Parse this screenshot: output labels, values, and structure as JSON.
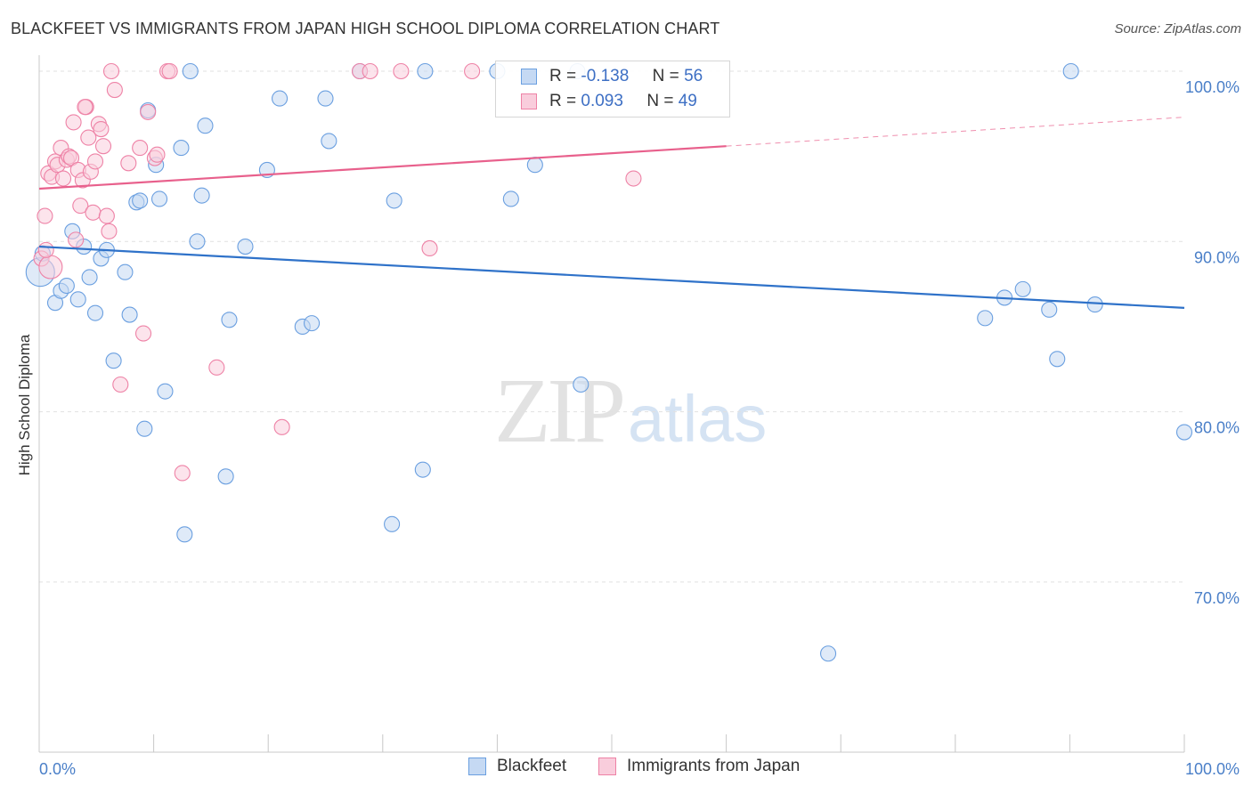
{
  "title": "BLACKFEET VS IMMIGRANTS FROM JAPAN HIGH SCHOOL DIPLOMA CORRELATION CHART",
  "source": "Source: ZipAtlas.com",
  "watermark": {
    "zip": "ZIP",
    "atlas": "atlas"
  },
  "colors": {
    "blue": "#6a9fe0",
    "blue_fill": "#c5d9f3",
    "blue_line": "#2f72c9",
    "pink": "#ee82a6",
    "pink_fill": "#f9cddc",
    "pink_line": "#e8608c",
    "grid": "#e1e1e1",
    "tick_text": "#4a7fc8"
  },
  "legend": {
    "rows": [
      {
        "r_label": "R =",
        "r_value": "-0.138",
        "n_label": "N =",
        "n_value": "56"
      },
      {
        "r_label": "R =",
        "r_value": "0.093",
        "n_label": "N =",
        "n_value": "49"
      }
    ]
  },
  "bottom_legend": [
    "Blackfeet",
    "Immigrants from Japan"
  ],
  "chart_data": {
    "type": "scatter",
    "title": "BLACKFEET VS IMMIGRANTS FROM JAPAN HIGH SCHOOL DIPLOMA CORRELATION CHART",
    "xlabel": "",
    "ylabel": "High School Diploma",
    "xlim": [
      0,
      100
    ],
    "ylim": [
      60,
      101.5
    ],
    "x_tick_labels": [
      "0.0%",
      "100.0%"
    ],
    "y_ticks": [
      70,
      80,
      90,
      100
    ],
    "y_tick_labels": [
      "70.0%",
      "80.0%",
      "90.0%",
      "100.0%"
    ],
    "grid": true,
    "legend_position": "top-center",
    "series": [
      {
        "name": "Blackfeet",
        "r": -0.138,
        "n": 56,
        "trend": {
          "x": [
            0,
            100
          ],
          "y": [
            89.7,
            86.1
          ],
          "dashed_from": null
        },
        "points": [
          [
            0.1,
            88.2
          ],
          [
            0.3,
            89.3
          ],
          [
            1.4,
            86.4
          ],
          [
            1.9,
            87.1
          ],
          [
            2.4,
            87.4
          ],
          [
            2.9,
            90.6
          ],
          [
            3.4,
            86.6
          ],
          [
            3.9,
            89.7
          ],
          [
            4.4,
            87.9
          ],
          [
            4.9,
            85.8
          ],
          [
            5.4,
            89.0
          ],
          [
            5.9,
            89.5
          ],
          [
            6.5,
            83.0
          ],
          [
            7.5,
            88.2
          ],
          [
            7.9,
            85.7
          ],
          [
            8.5,
            92.3
          ],
          [
            8.8,
            92.4
          ],
          [
            9.2,
            79.0
          ],
          [
            9.5,
            97.7
          ],
          [
            10.2,
            94.5
          ],
          [
            10.5,
            92.5
          ],
          [
            11.0,
            81.2
          ],
          [
            12.4,
            95.5
          ],
          [
            12.7,
            72.8
          ],
          [
            13.2,
            100.0
          ],
          [
            13.8,
            90.0
          ],
          [
            14.2,
            92.7
          ],
          [
            14.5,
            96.8
          ],
          [
            16.3,
            76.2
          ],
          [
            16.6,
            85.4
          ],
          [
            18.0,
            89.7
          ],
          [
            19.9,
            94.2
          ],
          [
            21.0,
            98.4
          ],
          [
            23.0,
            85.0
          ],
          [
            23.8,
            85.2
          ],
          [
            25.0,
            98.4
          ],
          [
            25.3,
            95.9
          ],
          [
            28.0,
            100.0
          ],
          [
            30.8,
            73.4
          ],
          [
            31.0,
            92.4
          ],
          [
            33.5,
            76.6
          ],
          [
            33.7,
            100.0
          ],
          [
            40.0,
            100.0
          ],
          [
            41.2,
            92.5
          ],
          [
            43.3,
            94.5
          ],
          [
            47.3,
            81.6
          ],
          [
            47.0,
            100.0
          ],
          [
            68.9,
            65.8
          ],
          [
            82.6,
            85.5
          ],
          [
            84.3,
            86.7
          ],
          [
            85.9,
            87.2
          ],
          [
            88.2,
            86.0
          ],
          [
            88.9,
            83.1
          ],
          [
            90.1,
            100.0
          ],
          [
            92.2,
            86.3
          ],
          [
            100.0,
            78.8
          ]
        ]
      },
      {
        "name": "Immigrants from Japan",
        "r": 0.093,
        "n": 49,
        "trend": {
          "x": [
            0,
            60,
            100
          ],
          "y": [
            93.1,
            95.6,
            97.3
          ],
          "dashed_from": 60
        },
        "points": [
          [
            0.2,
            89.0
          ],
          [
            0.5,
            91.5
          ],
          [
            0.8,
            94.0
          ],
          [
            1.1,
            93.8
          ],
          [
            1.4,
            94.7
          ],
          [
            1.6,
            94.5
          ],
          [
            1.9,
            95.5
          ],
          [
            2.1,
            93.7
          ],
          [
            2.4,
            94.8
          ],
          [
            2.6,
            95.0
          ],
          [
            2.8,
            94.9
          ],
          [
            3.0,
            97.0
          ],
          [
            3.2,
            90.1
          ],
          [
            3.4,
            94.2
          ],
          [
            3.6,
            92.1
          ],
          [
            3.8,
            93.6
          ],
          [
            4.1,
            97.9
          ],
          [
            4.3,
            96.1
          ],
          [
            4.5,
            94.1
          ],
          [
            4.7,
            91.7
          ],
          [
            4.9,
            94.7
          ],
          [
            5.2,
            96.9
          ],
          [
            5.4,
            96.6
          ],
          [
            5.6,
            95.6
          ],
          [
            5.9,
            91.5
          ],
          [
            6.1,
            90.6
          ],
          [
            6.3,
            100.0
          ],
          [
            6.6,
            98.9
          ],
          [
            7.1,
            81.6
          ],
          [
            7.8,
            94.6
          ],
          [
            8.8,
            95.5
          ],
          [
            9.1,
            84.6
          ],
          [
            9.5,
            97.6
          ],
          [
            10.1,
            94.9
          ],
          [
            10.3,
            95.1
          ],
          [
            11.2,
            100.0
          ],
          [
            11.4,
            100.0
          ],
          [
            12.5,
            76.4
          ],
          [
            15.5,
            82.6
          ],
          [
            21.2,
            79.1
          ],
          [
            28.0,
            100.0
          ],
          [
            28.9,
            100.0
          ],
          [
            31.6,
            100.0
          ],
          [
            34.1,
            89.6
          ],
          [
            37.8,
            100.0
          ],
          [
            51.9,
            93.7
          ],
          [
            4.0,
            97.9
          ],
          [
            1.0,
            88.5
          ],
          [
            0.6,
            89.5
          ]
        ]
      }
    ]
  }
}
